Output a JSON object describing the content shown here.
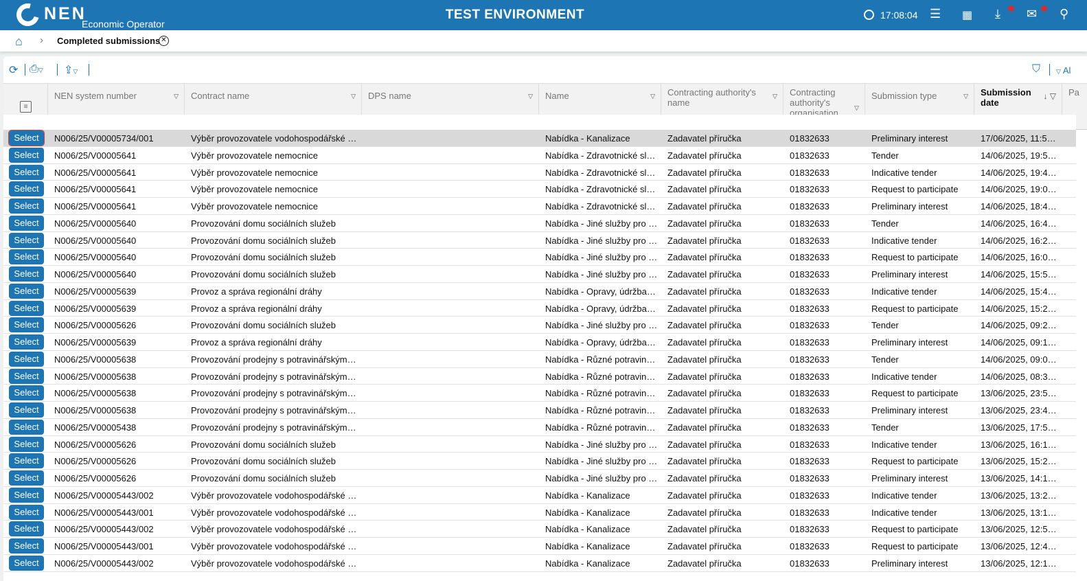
{
  "header": {
    "logo_text": "NEN",
    "subtitle": "Economic Operator",
    "environment": "TEST ENVIRONMENT",
    "time": "17:08:04",
    "icons": [
      "clock-icon",
      "menu-icon",
      "calendar-icon",
      "download-icon",
      "mail-icon",
      "user-icon"
    ],
    "accent": "#1e75b4",
    "notification_color": "#d32f2f"
  },
  "breadcrumb": {
    "current": "Completed submissions"
  },
  "toolbar": {
    "right_label": "Al"
  },
  "columns": [
    "NEN system number",
    "Contract name",
    "DPS name",
    "Name",
    "Contracting authority's name",
    "Contracting authority's organisation ID number",
    "Submission type",
    "Submission date",
    "Pa"
  ],
  "sort": {
    "column": "Submission date",
    "direction": "descending"
  },
  "select_label": "Select",
  "rows": [
    [
      "N006/25/V00005734/001",
      "Výběr provozovatele vodohospodářské i…",
      "",
      "Nabídka - Kanalizace",
      "Zadavatel příručka",
      "01832633",
      "Preliminary interest",
      "17/06/2025, 11:5…"
    ],
    [
      "N006/25/V00005641",
      "Výběr provozovatele nemocnice",
      "",
      "Nabídka - Zdravotnické slu…",
      "Zadavatel příručka",
      "01832633",
      "Tender",
      "14/06/2025, 19:5…"
    ],
    [
      "N006/25/V00005641",
      "Výběr provozovatele nemocnice",
      "",
      "Nabídka - Zdravotnické slu…",
      "Zadavatel příručka",
      "01832633",
      "Indicative tender",
      "14/06/2025, 19:4…"
    ],
    [
      "N006/25/V00005641",
      "Výběr provozovatele nemocnice",
      "",
      "Nabídka - Zdravotnické slu…",
      "Zadavatel příručka",
      "01832633",
      "Request to participate",
      "14/06/2025, 19:0…"
    ],
    [
      "N006/25/V00005641",
      "Výběr provozovatele nemocnice",
      "",
      "Nabídka - Zdravotnické slu…",
      "Zadavatel příručka",
      "01832633",
      "Preliminary interest",
      "14/06/2025, 18:4…"
    ],
    [
      "N006/25/V00005640",
      "Provozování domu sociálních služeb",
      "",
      "Nabídka - Jiné služby pro v…",
      "Zadavatel příručka",
      "01832633",
      "Tender",
      "14/06/2025, 16:4…"
    ],
    [
      "N006/25/V00005640",
      "Provozování domu sociálních služeb",
      "",
      "Nabídka - Jiné služby pro v…",
      "Zadavatel příručka",
      "01832633",
      "Indicative tender",
      "14/06/2025, 16:2…"
    ],
    [
      "N006/25/V00005640",
      "Provozování domu sociálních služeb",
      "",
      "Nabídka - Jiné služby pro v…",
      "Zadavatel příručka",
      "01832633",
      "Request to participate",
      "14/06/2025, 16:0…"
    ],
    [
      "N006/25/V00005640",
      "Provozování domu sociálních služeb",
      "",
      "Nabídka - Jiné služby pro v…",
      "Zadavatel příručka",
      "01832633",
      "Preliminary interest",
      "14/06/2025, 15:5…"
    ],
    [
      "N006/25/V00005639",
      "Provoz a správa regionální dráhy",
      "",
      "Nabídka - Opravy, údržba a…",
      "Zadavatel příručka",
      "01832633",
      "Indicative tender",
      "14/06/2025, 15:4…"
    ],
    [
      "N006/25/V00005639",
      "Provoz a správa regionální dráhy",
      "",
      "Nabídka - Opravy, údržba a…",
      "Zadavatel příručka",
      "01832633",
      "Request to participate",
      "14/06/2025, 15:2…"
    ],
    [
      "N006/25/V00005626",
      "Provozování domu sociálních služeb",
      "",
      "Nabídka - Jiné služby pro v…",
      "Zadavatel příručka",
      "01832633",
      "Tender",
      "14/06/2025, 09:2…"
    ],
    [
      "N006/25/V00005639",
      "Provoz a správa regionální dráhy",
      "",
      "Nabídka - Opravy, údržba a…",
      "Zadavatel příručka",
      "01832633",
      "Preliminary interest",
      "14/06/2025, 09:1…"
    ],
    [
      "N006/25/V00005638",
      "Provozování prodejny s potravinářským …",
      "",
      "Nabídka - Různé potraviná…",
      "Zadavatel příručka",
      "01832633",
      "Tender",
      "14/06/2025, 09:0…"
    ],
    [
      "N006/25/V00005638",
      "Provozování prodejny s potravinářským …",
      "",
      "Nabídka - Různé potraviná…",
      "Zadavatel příručka",
      "01832633",
      "Indicative tender",
      "14/06/2025, 08:3…"
    ],
    [
      "N006/25/V00005638",
      "Provozování prodejny s potravinářským …",
      "",
      "Nabídka - Různé potraviná…",
      "Zadavatel příručka",
      "01832633",
      "Request to participate",
      "13/06/2025, 23:5…"
    ],
    [
      "N006/25/V00005638",
      "Provozování prodejny s potravinářským …",
      "",
      "Nabídka - Různé potraviná…",
      "Zadavatel příručka",
      "01832633",
      "Preliminary interest",
      "13/06/2025, 23:4…"
    ],
    [
      "N006/25/V00005438",
      "Provozování prodejny s potravinářským …",
      "",
      "Nabídka - Různé potraviná…",
      "Zadavatel příručka",
      "01832633",
      "Tender",
      "13/06/2025, 17:5…"
    ],
    [
      "N006/25/V00005626",
      "Provozování domu sociálních služeb",
      "",
      "Nabídka - Jiné služby pro v…",
      "Zadavatel příručka",
      "01832633",
      "Indicative tender",
      "13/06/2025, 16:1…"
    ],
    [
      "N006/25/V00005626",
      "Provozování domu sociálních služeb",
      "",
      "Nabídka - Jiné služby pro v…",
      "Zadavatel příručka",
      "01832633",
      "Request to participate",
      "13/06/2025, 15:2…"
    ],
    [
      "N006/25/V00005626",
      "Provozování domu sociálních služeb",
      "",
      "Nabídka - Jiné služby pro v…",
      "Zadavatel příručka",
      "01832633",
      "Preliminary interest",
      "13/06/2025, 14:1…"
    ],
    [
      "N006/25/V00005443/002",
      "Výběr provozovatele vodohospodářské i…",
      "",
      "Nabídka - Kanalizace",
      "Zadavatel příručka",
      "01832633",
      "Indicative tender",
      "13/06/2025, 13:2…"
    ],
    [
      "N006/25/V00005443/001",
      "Výběr provozovatele vodohospodářské i…",
      "",
      "Nabídka - Kanalizace",
      "Zadavatel příručka",
      "01832633",
      "Indicative tender",
      "13/06/2025, 13:1…"
    ],
    [
      "N006/25/V00005443/002",
      "Výběr provozovatele vodohospodářské i…",
      "",
      "Nabídka - Kanalizace",
      "Zadavatel příručka",
      "01832633",
      "Request to participate",
      "13/06/2025, 12:5…"
    ],
    [
      "N006/25/V00005443/001",
      "Výběr provozovatele vodohospodářské i…",
      "",
      "Nabídka - Kanalizace",
      "Zadavatel příručka",
      "01832633",
      "Request to participate",
      "13/06/2025, 12:4…"
    ],
    [
      "N006/25/V00005443/002",
      "Výběr provozovatele vodohospodářské i…",
      "",
      "Nabídka - Kanalizace",
      "Zadavatel příručka",
      "01832633",
      "Preliminary interest",
      "13/06/2025, 12:1…"
    ]
  ]
}
